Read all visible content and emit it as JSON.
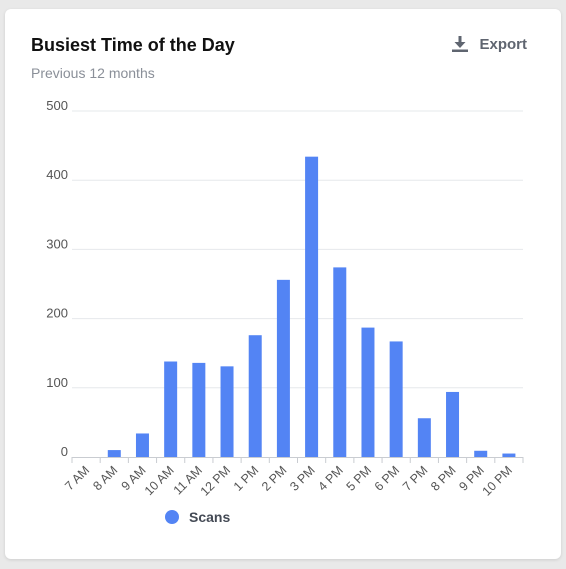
{
  "card": {
    "title": "Busiest Time of the Day",
    "subtitle": "Previous 12 months",
    "export_label": "Export",
    "export_icon": "download-icon"
  },
  "colors": {
    "bar": "#5384f4",
    "grid": "#e6e8eb",
    "axis": "#c9ccd1",
    "tick_text": "#555555"
  },
  "chart_data": {
    "type": "bar",
    "title": "Busiest Time of the Day",
    "subtitle": "Previous 12 months",
    "categories": [
      "7 AM",
      "8 AM",
      "9 AM",
      "10 AM",
      "11 AM",
      "12 PM",
      "1 PM",
      "2 PM",
      "3 PM",
      "4 PM",
      "5 PM",
      "6 PM",
      "7 PM",
      "8 PM",
      "9 PM",
      "10 PM"
    ],
    "series": [
      {
        "name": "Scans",
        "values": [
          0,
          10,
          34,
          138,
          136,
          131,
          176,
          256,
          434,
          274,
          187,
          167,
          56,
          94,
          9,
          5
        ]
      }
    ],
    "yticks": [
      "0",
      "100",
      "200",
      "300",
      "400",
      "500"
    ],
    "ylim": [
      0,
      500
    ],
    "grid": true,
    "legend_position": "bottom-left",
    "xlabel": "",
    "ylabel": ""
  }
}
